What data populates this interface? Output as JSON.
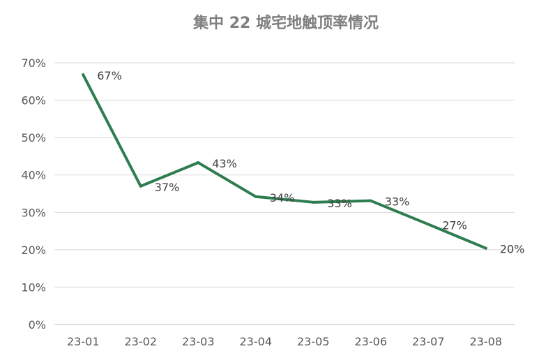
{
  "chart_data": {
    "type": "line",
    "title": "集中 22 城宅地触顶率情况",
    "xlabel": "",
    "ylabel": "",
    "categories": [
      "23-01",
      "23-02",
      "23-03",
      "23-04",
      "23-05",
      "23-06",
      "23-07",
      "23-08"
    ],
    "series": [
      {
        "values": [
          66.8,
          37.0,
          43.3,
          34.2,
          32.7,
          33.1,
          26.8,
          20.4
        ],
        "data_labels": [
          "67%",
          "37%",
          "43%",
          "34%",
          "33%",
          "33%",
          "27%",
          "20%"
        ],
        "color": "#2e7d4f"
      }
    ],
    "ylim": [
      0,
      70
    ],
    "yticks": [
      0,
      10,
      20,
      30,
      40,
      50,
      60,
      70
    ],
    "ytick_labels": [
      "0%",
      "10%",
      "20%",
      "30%",
      "40%",
      "50%",
      "60%",
      "70%"
    ],
    "grid": true,
    "legend": "none"
  }
}
